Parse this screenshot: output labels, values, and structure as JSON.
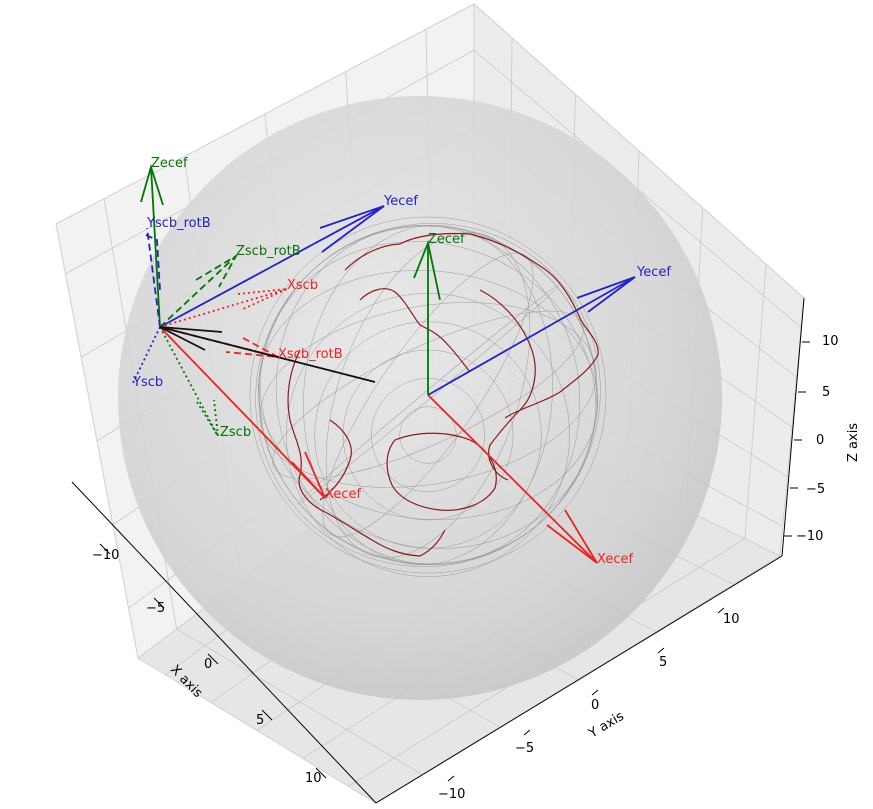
{
  "chart_data": {
    "type": "3d-line",
    "title": "",
    "xlabel": "X axis",
    "ylabel": "Y axis",
    "zlabel": "Z axis",
    "xlim": [
      -13,
      13
    ],
    "ylim": [
      -13,
      13
    ],
    "zlim": [
      -13,
      13
    ],
    "x_ticks": [
      "−10",
      "−5",
      "0",
      "5",
      "10"
    ],
    "y_ticks": [
      "−10",
      "−5",
      "0",
      "5",
      "10"
    ],
    "z_ticks": [
      "−10",
      "−5",
      "0",
      "5",
      "10"
    ],
    "grid": true,
    "colors": {
      "x_vector": "#ee2222",
      "y_vector": "#2222cc",
      "z_vector": "#007700",
      "coastline": "#8b1a1a",
      "sphere": "#c8c8c8",
      "body_line": "#111111"
    },
    "vectors": [
      {
        "label": "Xecef",
        "frame": "ECEF at origin",
        "color": "x_vector",
        "style": "solid"
      },
      {
        "label": "Yecef",
        "frame": "ECEF at origin",
        "color": "y_vector",
        "style": "solid"
      },
      {
        "label": "Zecef",
        "frame": "ECEF at origin",
        "color": "z_vector",
        "style": "solid"
      },
      {
        "label": "Xecef",
        "frame": "ECEF at spacecraft",
        "color": "x_vector",
        "style": "solid"
      },
      {
        "label": "Yecef",
        "frame": "ECEF at spacecraft",
        "color": "y_vector",
        "style": "solid"
      },
      {
        "label": "Zecef",
        "frame": "ECEF at spacecraft",
        "color": "z_vector",
        "style": "solid"
      },
      {
        "label": "Xscb",
        "frame": "spacecraft body",
        "color": "x_vector",
        "style": "dotted"
      },
      {
        "label": "Yscb",
        "frame": "spacecraft body",
        "color": "y_vector",
        "style": "dotted"
      },
      {
        "label": "Zscb",
        "frame": "spacecraft body",
        "color": "z_vector",
        "style": "dotted"
      },
      {
        "label": "Xscb_rotB",
        "frame": "rotated body",
        "color": "x_vector",
        "style": "dashed"
      },
      {
        "label": "Yscb_rotB",
        "frame": "rotated body",
        "color": "y_vector",
        "style": "dashed"
      },
      {
        "label": "Zscb_rotB",
        "frame": "rotated body",
        "color": "z_vector",
        "style": "dashed"
      }
    ]
  }
}
